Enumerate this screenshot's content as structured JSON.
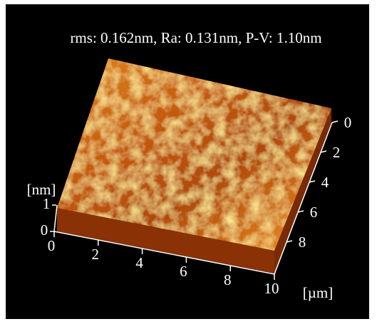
{
  "caption": "rms: 0.162nm, Ra: 0.131nm, P-V: 1.10nm",
  "z_axis": {
    "label": "[nm]",
    "ticks": [
      "0",
      "1"
    ]
  },
  "x_axis": {
    "ticks": [
      "0",
      "2",
      "4",
      "6",
      "8",
      "10"
    ]
  },
  "y_axis": {
    "ticks": [
      "0",
      "2",
      "4",
      "6",
      "8"
    ],
    "unit": "[µm]"
  }
}
